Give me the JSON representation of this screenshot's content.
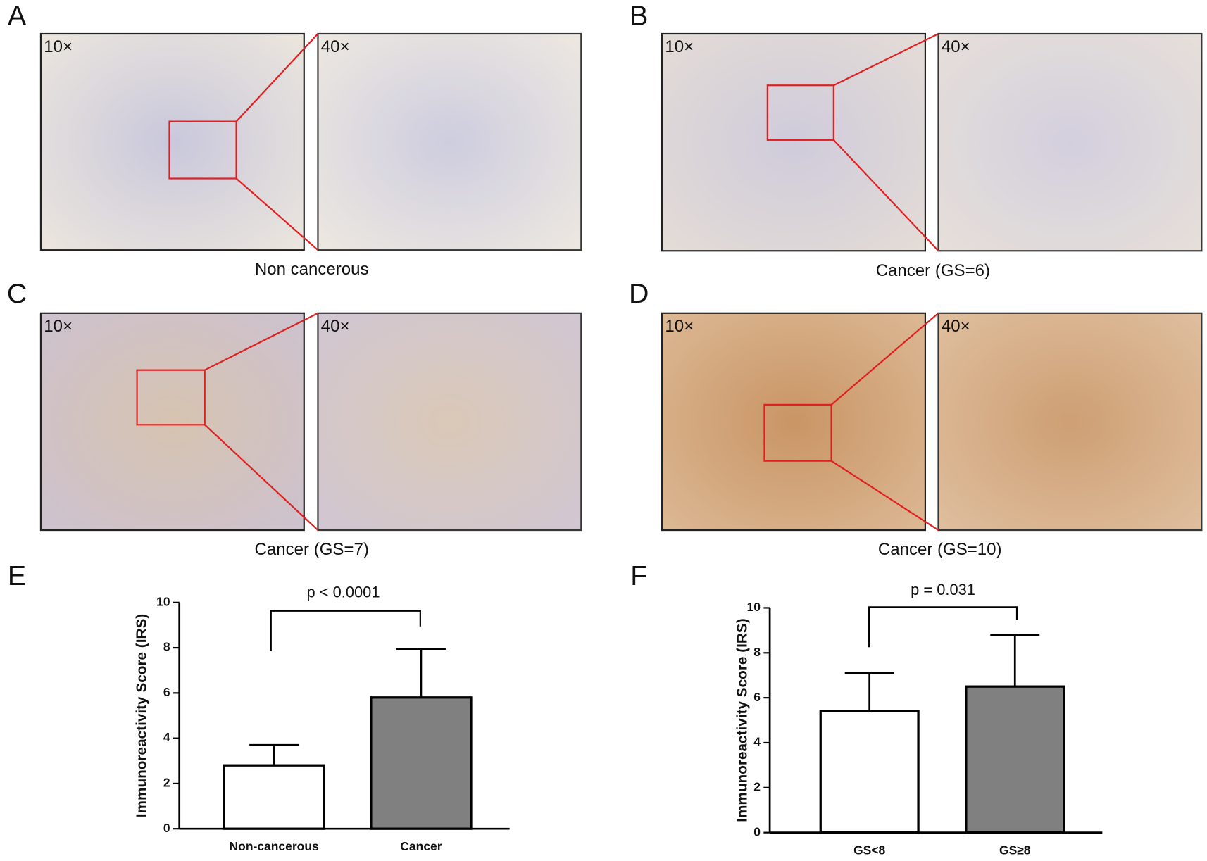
{
  "panels": [
    {
      "letter": "A",
      "mag_low": "10×",
      "mag_high": "40×",
      "caption": "Non cancerous"
    },
    {
      "letter": "B",
      "mag_low": "10×",
      "mag_high": "40×",
      "caption": "Cancer (GS=6)"
    },
    {
      "letter": "C",
      "mag_low": "10×",
      "mag_high": "40×",
      "caption": "Cancer (GS=7)"
    },
    {
      "letter": "D",
      "mag_low": "10×",
      "mag_high": "40×",
      "caption": "Cancer (GS=10)"
    }
  ],
  "chart_data": [
    {
      "type": "bar",
      "letter": "E",
      "y_label": "Immunoreactivity Score (IRS)",
      "annotation": "p < 0.0001",
      "categories": [
        "Non-cancerous",
        "Cancer"
      ],
      "values": [
        2.8,
        5.8
      ],
      "errors": [
        0.9,
        2.15
      ],
      "colors": [
        "#ffffff",
        "#808080"
      ],
      "ylim": [
        0,
        10
      ],
      "yticks": [
        0,
        2,
        4,
        6,
        8,
        10
      ]
    },
    {
      "type": "bar",
      "letter": "F",
      "y_label": "Immunoreactivity Score (IRS)",
      "annotation": "p = 0.031",
      "categories": [
        "GS<8",
        "GS≥8"
      ],
      "values": [
        5.4,
        6.5
      ],
      "errors": [
        1.7,
        2.3
      ],
      "colors": [
        "#ffffff",
        "#808080"
      ],
      "ylim": [
        0,
        10
      ],
      "yticks": [
        0,
        2,
        4,
        6,
        8,
        10
      ]
    }
  ]
}
